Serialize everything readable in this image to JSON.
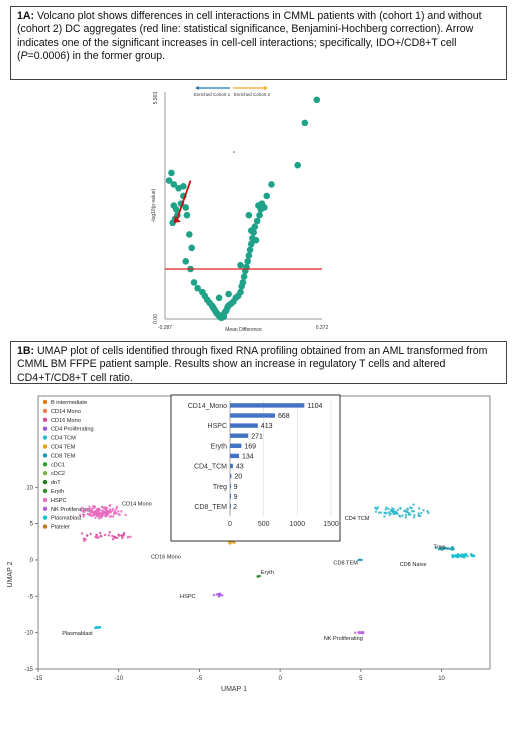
{
  "captionA": {
    "tag": "1A:",
    "text_pre": "Volcano plot shows differences in cell interactions in CMML patients with (cohort 1) and without (cohort 2) DC aggregates (red line: statistical significance, Benjamini-Hochberg correction). Arrow indicates one of the significant increases in cell-cell interactions; specifically, IDO+/CD8+T cell (",
    "p_symbol": "P",
    "text_post": "=0.0006) in the former group."
  },
  "captionB": {
    "tag": "1B:",
    "text": "UMAP plot of cells identified through fixed RNA profiling obtained from an AML transformed from CMML BM FFPE patient sample. Results show an increase in regulatory T cells and altered CD4+T/CD8+T cell ratio."
  },
  "chart_data": [
    {
      "type": "scatter",
      "name_id": "volcano",
      "xlabel": "Mean Difference",
      "ylabel": "-log10(p-value)",
      "xlim": [
        -0.287,
        0.372
      ],
      "ylim": [
        0,
        5.903
      ],
      "x_ticks": [
        "-0.287",
        "0.372"
      ],
      "y_ticks": [
        "0.00",
        "5.903"
      ],
      "legend": [
        "Enriched Cohort 1",
        "Enriched Cohort 2"
      ],
      "legend_colors": [
        "#1f77b4",
        "#f5a623"
      ],
      "point_color": "#1fa287",
      "threshold_color": "#e02020",
      "threshold_y": 1.3,
      "arrow_color": "#c01010",
      "arrow_from": [
        -0.18,
        3.6
      ],
      "arrow_to": [
        -0.25,
        2.5
      ],
      "points": [
        [
          -0.26,
          3.8
        ],
        [
          -0.27,
          3.6
        ],
        [
          -0.25,
          3.5
        ],
        [
          -0.23,
          3.4
        ],
        [
          -0.21,
          3.2
        ],
        [
          -0.22,
          3.0
        ],
        [
          -0.25,
          2.95
        ],
        [
          -0.24,
          2.85
        ],
        [
          -0.235,
          2.7
        ],
        [
          -0.245,
          2.6
        ],
        [
          -0.255,
          2.5
        ],
        [
          -0.21,
          3.45
        ],
        [
          -0.2,
          2.9
        ],
        [
          -0.195,
          2.7
        ],
        [
          -0.185,
          2.2
        ],
        [
          -0.175,
          1.85
        ],
        [
          -0.2,
          1.5
        ],
        [
          -0.18,
          1.3
        ],
        [
          -0.165,
          0.95
        ],
        [
          -0.15,
          0.8
        ],
        [
          -0.13,
          0.7
        ],
        [
          -0.12,
          0.6
        ],
        [
          -0.11,
          0.5
        ],
        [
          -0.1,
          0.42
        ],
        [
          -0.09,
          0.35
        ],
        [
          -0.085,
          0.3
        ],
        [
          -0.08,
          0.25
        ],
        [
          -0.075,
          0.2
        ],
        [
          -0.07,
          0.15
        ],
        [
          -0.065,
          0.12
        ],
        [
          -0.06,
          0.08
        ],
        [
          -0.055,
          0.05
        ],
        [
          -0.05,
          0.03
        ],
        [
          -0.045,
          0.1
        ],
        [
          -0.04,
          0.06
        ],
        [
          -0.035,
          0.18
        ],
        [
          -0.03,
          0.22
        ],
        [
          -0.025,
          0.3
        ],
        [
          -0.02,
          0.35
        ],
        [
          -0.01,
          0.4
        ],
        [
          0.0,
          0.45
        ],
        [
          0.01,
          0.55
        ],
        [
          0.02,
          0.6
        ],
        [
          0.03,
          0.7
        ],
        [
          0.035,
          0.85
        ],
        [
          0.04,
          0.95
        ],
        [
          -0.06,
          0.55
        ],
        [
          -0.02,
          0.65
        ],
        [
          0.045,
          1.1
        ],
        [
          0.05,
          1.25
        ],
        [
          0.055,
          1.35
        ],
        [
          0.06,
          1.5
        ],
        [
          0.065,
          1.65
        ],
        [
          0.07,
          1.8
        ],
        [
          0.075,
          1.95
        ],
        [
          0.08,
          2.1
        ],
        [
          0.085,
          2.25
        ],
        [
          0.09,
          2.4
        ],
        [
          0.1,
          2.55
        ],
        [
          0.11,
          2.7
        ],
        [
          0.115,
          2.85
        ],
        [
          0.12,
          3.0
        ],
        [
          0.14,
          3.2
        ],
        [
          0.16,
          3.5
        ],
        [
          0.27,
          4.0
        ],
        [
          0.3,
          5.1
        ],
        [
          0.35,
          5.7
        ],
        [
          0.03,
          1.4
        ],
        [
          0.075,
          2.3
        ],
        [
          0.095,
          2.05
        ],
        [
          0.105,
          2.95
        ],
        [
          0.065,
          2.7
        ],
        [
          0.13,
          2.9
        ]
      ]
    },
    {
      "type": "bar",
      "name_id": "inset-bar",
      "categories": [
        "CD14_Mono",
        "",
        "HSPC",
        "",
        "Eryth",
        "",
        "CD4_TCM",
        "",
        "Treg",
        "",
        "CD8_TEM"
      ],
      "values": [
        1104,
        668,
        413,
        271,
        169,
        134,
        43,
        20,
        9,
        9,
        2
      ],
      "value_labels": [
        "1104",
        "668",
        "413",
        "271",
        "169",
        "134",
        "43",
        "20",
        "9",
        "9",
        "2"
      ],
      "x_ticks": [
        "0",
        "500",
        "1000",
        "1500"
      ],
      "xlim": [
        0,
        1500
      ],
      "bar_color": "#4472c4"
    },
    {
      "type": "scatter",
      "name_id": "umap",
      "xlabel": "UMAP 1",
      "ylabel": "UMAP 2",
      "xlim": [
        -15,
        13
      ],
      "ylim": [
        -15,
        11
      ],
      "x_ticks": [
        -15,
        -10,
        -5,
        0,
        5,
        10
      ],
      "y_ticks": [
        10,
        5,
        0,
        -5,
        -10,
        -15
      ],
      "legend": [
        {
          "name": "B intermediate",
          "color": "#e07a10"
        },
        {
          "name": "CD14 Mono",
          "color": "#f07a4a"
        },
        {
          "name": "CD16 Mono",
          "color": "#d94ba0"
        },
        {
          "name": "CD4 Proliferating",
          "color": "#9b59d0"
        },
        {
          "name": "CD4 TCM",
          "color": "#2db8c8"
        },
        {
          "name": "CD4 TEM",
          "color": "#e8a020"
        },
        {
          "name": "CD8 TEM",
          "color": "#1a9ab0"
        },
        {
          "name": "cDC1",
          "color": "#2ca02c"
        },
        {
          "name": "cDC2",
          "color": "#7ab648"
        },
        {
          "name": "dnT",
          "color": "#1e7a1e"
        },
        {
          "name": "Eryth",
          "color": "#2e8b2e"
        },
        {
          "name": "HSPC",
          "color": "#e76fc0"
        },
        {
          "name": "NK Proliferating",
          "color": "#b061e0"
        },
        {
          "name": "Plasmablast",
          "color": "#17becf"
        },
        {
          "name": "Platelet",
          "color": "#c07820"
        }
      ],
      "clusters": [
        {
          "label": "CD14 Mono",
          "cx": -11,
          "cy": 6.6,
          "sx": 1.8,
          "sy": 1.1,
          "n": 140,
          "color": "#e96bbf",
          "lx": -9.8,
          "ly": 7.5
        },
        {
          "label": "CD16 Mono",
          "cx": -10.5,
          "cy": 3.2,
          "sx": 2.2,
          "sy": 0.9,
          "n": 35,
          "color": "#d94ba0",
          "lx": -8,
          "ly": 0.2
        },
        {
          "label": "CD4 TCM",
          "cx": 7.5,
          "cy": 6.7,
          "sx": 2.2,
          "sy": 1.2,
          "n": 70,
          "color": "#2db8c8",
          "lx": 4,
          "ly": 5.5
        },
        {
          "label": "Treg",
          "cx": 10.2,
          "cy": 1.6,
          "sx": 0.8,
          "sy": 0.3,
          "n": 20,
          "color": "#1a9ab0",
          "lx": 9.5,
          "ly": 1.6
        },
        {
          "label": "CD8 Naive",
          "cx": 11.3,
          "cy": 0.6,
          "sx": 1.1,
          "sy": 0.4,
          "n": 45,
          "color": "#17becf",
          "lx": 7.4,
          "ly": -0.8
        },
        {
          "label": "CD8 TEM",
          "cx": 5,
          "cy": 0,
          "sx": 0.3,
          "sy": 0.2,
          "n": 4,
          "color": "#1a9ab0",
          "lx": 3.3,
          "ly": -0.6
        },
        {
          "label": "Platelet",
          "cx": -3.0,
          "cy": 2.4,
          "sx": 0.3,
          "sy": 0.3,
          "n": 10,
          "color": "#e8a020",
          "lx": -2.6,
          "ly": 3.5
        },
        {
          "label": "Eryth",
          "cx": -1.3,
          "cy": -2.3,
          "sx": 0.2,
          "sy": 0.2,
          "n": 4,
          "color": "#2e8b2e",
          "lx": -1.2,
          "ly": -1.9
        },
        {
          "label": "HSPC",
          "cx": -3.8,
          "cy": -4.8,
          "sx": 0.35,
          "sy": 0.35,
          "n": 14,
          "color": "#b061e0",
          "lx": -6.2,
          "ly": -5.2
        },
        {
          "label": "Plasmablast",
          "cx": -11.3,
          "cy": -9.3,
          "sx": 0.4,
          "sy": 0.15,
          "n": 10,
          "color": "#17becf",
          "lx": -13.5,
          "ly": -10.3
        },
        {
          "label": "NK Proliferating",
          "cx": 5,
          "cy": -10,
          "sx": 0.4,
          "sy": 0.15,
          "n": 14,
          "color": "#c060e0",
          "lx": 2.7,
          "ly": -11.0
        }
      ]
    }
  ]
}
